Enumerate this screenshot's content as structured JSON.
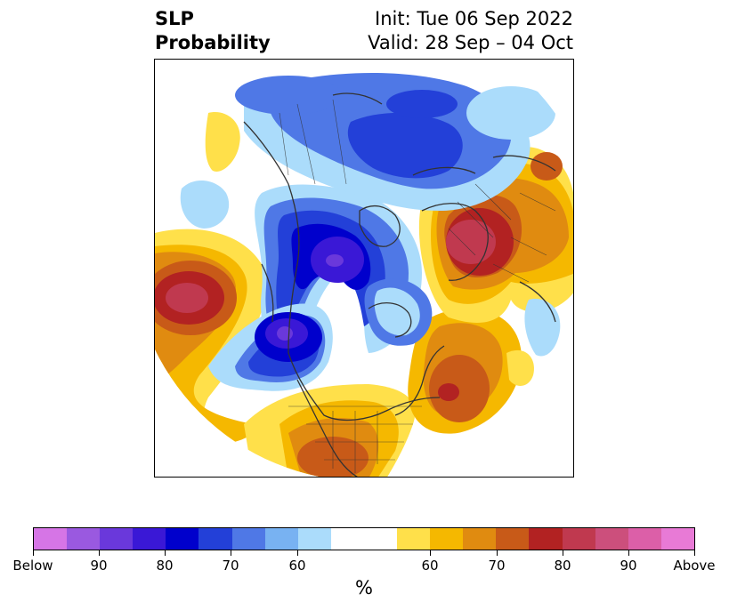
{
  "title": {
    "line1": "SLP",
    "line2": "Probability",
    "init": "Init: Tue 06 Sep 2022",
    "valid": "Valid: 28 Sep – 04 Oct"
  },
  "map": {
    "projection": "north-polar-stereographic",
    "features": [
      "coastlines",
      "country-borders",
      "state-borders"
    ],
    "probability_regions": [
      {
        "name": "north-pacific-high",
        "category": "above",
        "peak": "90"
      },
      {
        "name": "central-asia-high",
        "category": "above",
        "peak": "85"
      },
      {
        "name": "north-atlantic-high",
        "category": "above",
        "peak": "80"
      },
      {
        "name": "southern-usa-high",
        "category": "above",
        "peak": "75"
      },
      {
        "name": "canada-low",
        "category": "below",
        "peak": "85"
      },
      {
        "name": "north-pacific-low",
        "category": "below",
        "peak": "85"
      },
      {
        "name": "siberia-low",
        "category": "below",
        "peak": "75"
      },
      {
        "name": "arctic-low",
        "category": "below",
        "peak": "65"
      }
    ]
  },
  "colorbar": {
    "colors": [
      "#d675e6",
      "#9a59e0",
      "#6a38db",
      "#3a18d6",
      "#0000cc",
      "#2340d8",
      "#4f78e6",
      "#78b2f2",
      "#abdcfb",
      "#ffffff",
      "#ffffff",
      "#ffe04a",
      "#f5b800",
      "#e08b10",
      "#c85a18",
      "#b22222",
      "#c0394f",
      "#cc4f7c",
      "#dc5fa8",
      "#e87ad6"
    ],
    "tick_labels": [
      "Below",
      "90",
      "80",
      "70",
      "60",
      "60",
      "70",
      "80",
      "90",
      "Above"
    ],
    "unit": "%"
  }
}
